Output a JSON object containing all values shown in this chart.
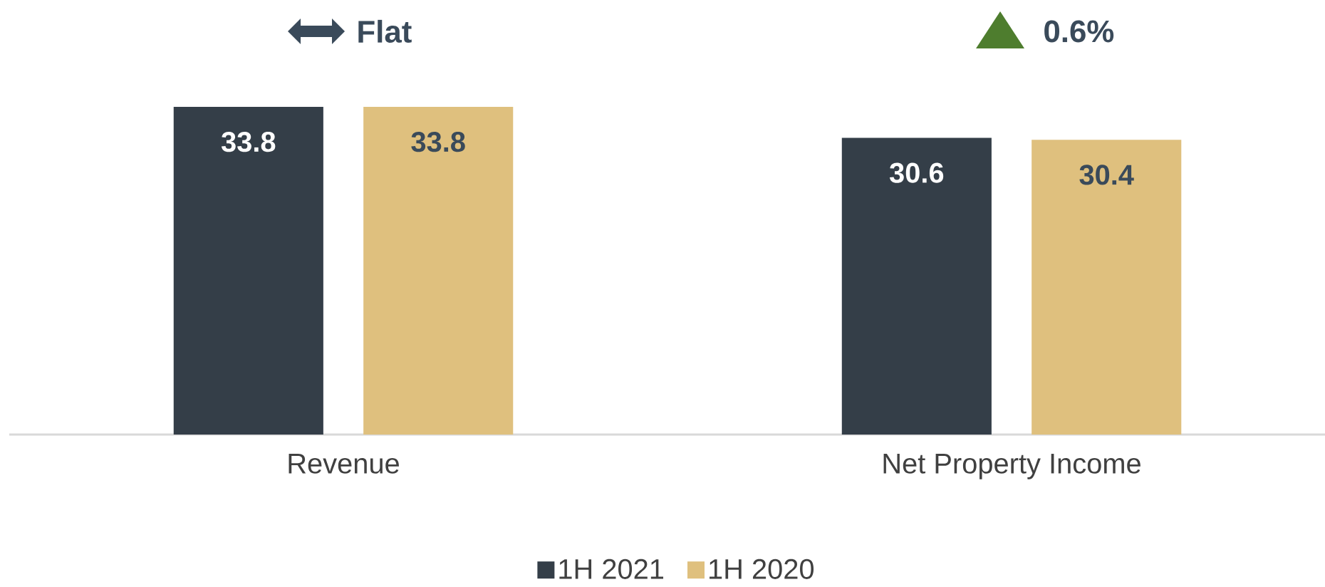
{
  "chart_data": {
    "type": "bar",
    "categories": [
      "Revenue",
      "Net Property Income"
    ],
    "series": [
      {
        "name": "1H 2021",
        "color": "#343e48",
        "values": [
          33.8,
          30.6
        ]
      },
      {
        "name": "1H 2020",
        "color": "#dfc07e",
        "values": [
          33.8,
          30.4
        ]
      }
    ],
    "data_labels": true,
    "legend": "bottom",
    "annotations": [
      "Flat",
      "0.6%"
    ]
  }
}
